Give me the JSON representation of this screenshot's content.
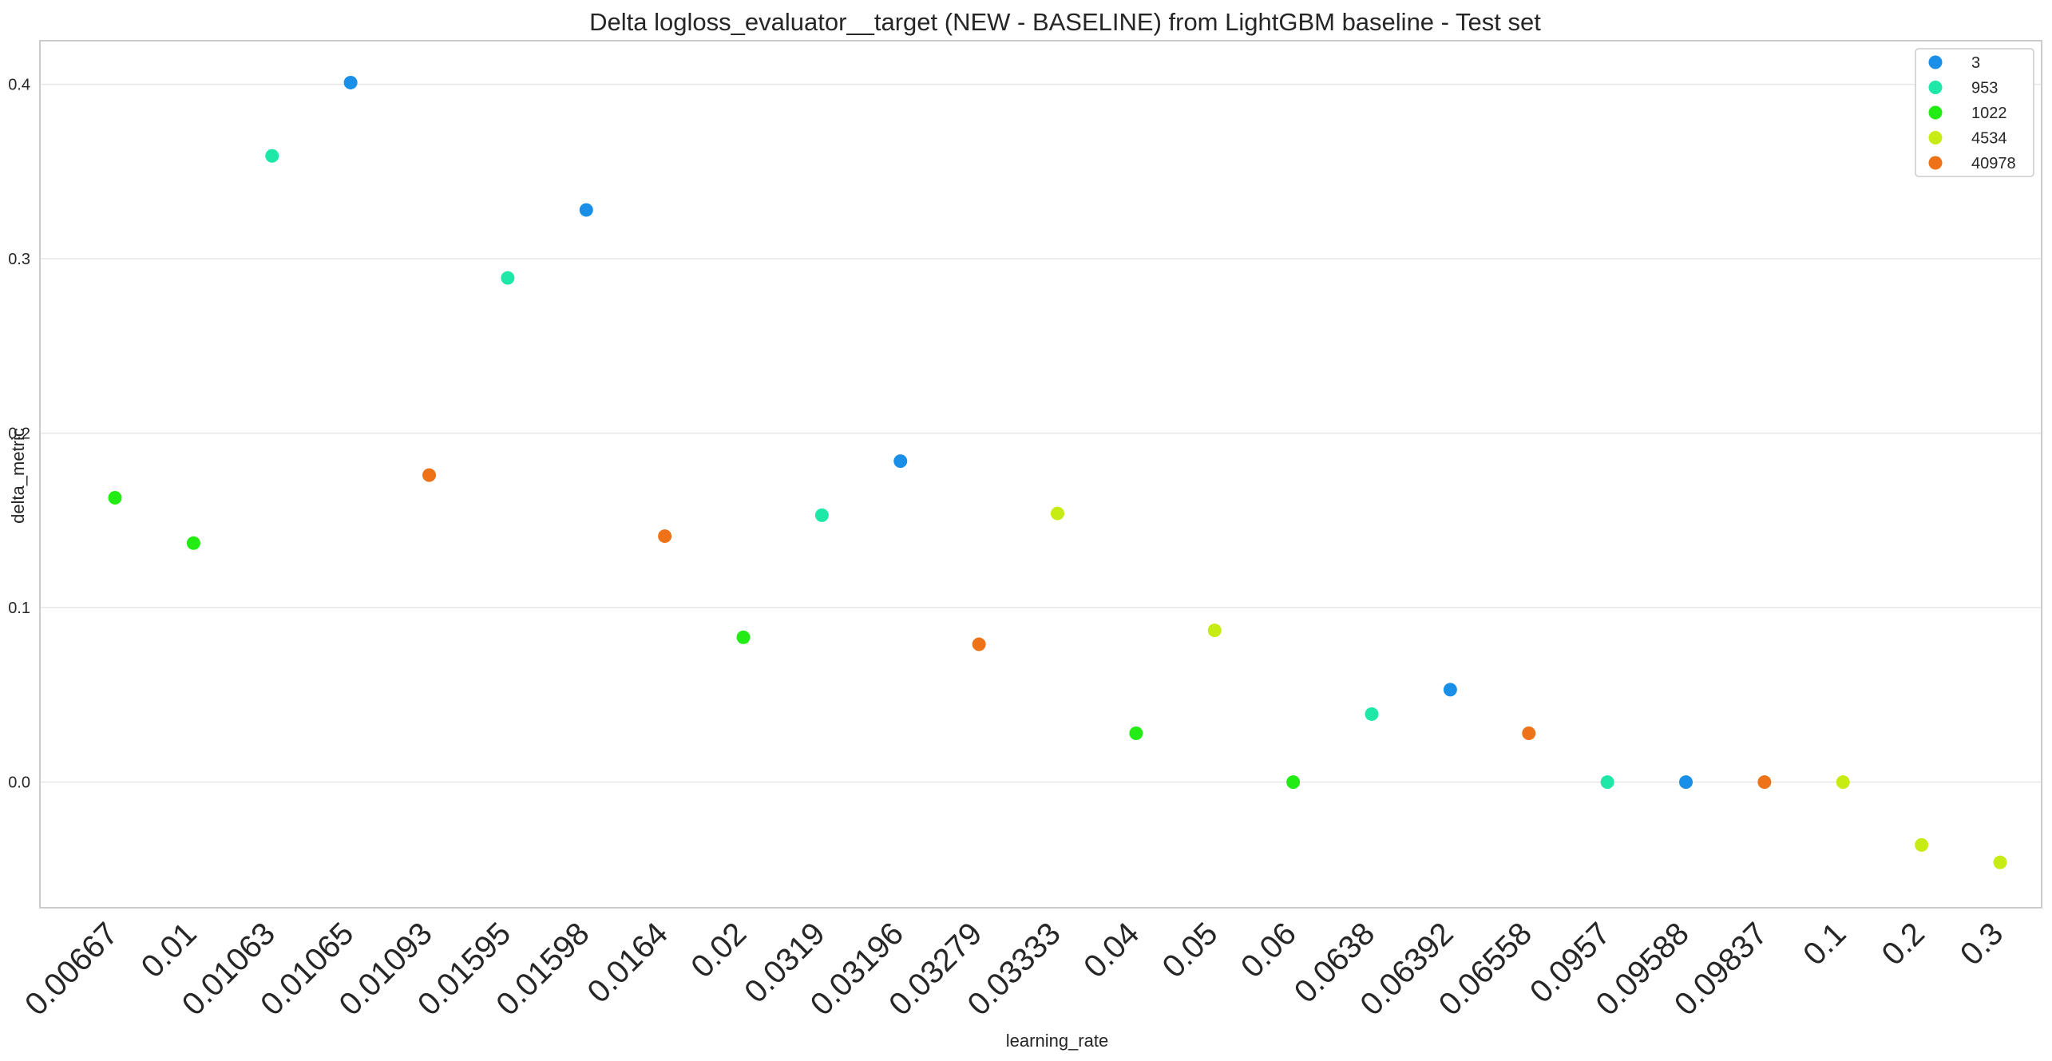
{
  "chart_data": {
    "type": "scatter",
    "title": "Delta logloss_evaluator__target (NEW - BASELINE) from LightGBM baseline - Test set",
    "xlabel": "learning_rate",
    "ylabel": "delta_metric",
    "x_scale": "categorical",
    "categories": [
      "0.00667",
      "0.01",
      "0.01063",
      "0.01065",
      "0.01093",
      "0.01595",
      "0.01598",
      "0.0164",
      "0.02",
      "0.0319",
      "0.03196",
      "0.03279",
      "0.03333",
      "0.04",
      "0.05",
      "0.06",
      "0.0638",
      "0.06392",
      "0.06558",
      "0.0957",
      "0.09588",
      "0.09837",
      "0.1",
      "0.2",
      "0.3"
    ],
    "ylim": [
      -0.072,
      0.425
    ],
    "yticks": [
      0.0,
      0.1,
      0.2,
      0.3,
      0.4
    ],
    "ytick_labels": [
      "0.0",
      "0.1",
      "0.2",
      "0.3",
      "0.4"
    ],
    "grid": true,
    "grid_axis": "y",
    "legend_position": "top-right",
    "series": [
      {
        "name": "3",
        "color": "#1a8fe8",
        "points": [
          {
            "x": "0.01065",
            "y": 0.401
          },
          {
            "x": "0.01598",
            "y": 0.328
          },
          {
            "x": "0.03196",
            "y": 0.184
          },
          {
            "x": "0.06392",
            "y": 0.053
          },
          {
            "x": "0.09588",
            "y": 0.0
          }
        ]
      },
      {
        "name": "953",
        "color": "#1de8a8",
        "points": [
          {
            "x": "0.01063",
            "y": 0.359
          },
          {
            "x": "0.01595",
            "y": 0.289
          },
          {
            "x": "0.0319",
            "y": 0.153
          },
          {
            "x": "0.0638",
            "y": 0.039
          },
          {
            "x": "0.0957",
            "y": 0.0
          }
        ]
      },
      {
        "name": "1022",
        "color": "#22ec14",
        "points": [
          {
            "x": "0.00667",
            "y": 0.163
          },
          {
            "x": "0.01",
            "y": 0.137
          },
          {
            "x": "0.02",
            "y": 0.083
          },
          {
            "x": "0.04",
            "y": 0.028
          },
          {
            "x": "0.06",
            "y": 0.0
          }
        ]
      },
      {
        "name": "4534",
        "color": "#c6ec14",
        "points": [
          {
            "x": "0.03333",
            "y": 0.154
          },
          {
            "x": "0.05",
            "y": 0.087
          },
          {
            "x": "0.1",
            "y": 0.0
          },
          {
            "x": "0.2",
            "y": -0.036
          },
          {
            "x": "0.3",
            "y": -0.046
          }
        ]
      },
      {
        "name": "40978",
        "color": "#ee7318",
        "points": [
          {
            "x": "0.01093",
            "y": 0.176
          },
          {
            "x": "0.0164",
            "y": 0.141
          },
          {
            "x": "0.03279",
            "y": 0.079
          },
          {
            "x": "0.06558",
            "y": 0.028
          },
          {
            "x": "0.09837",
            "y": 0.0
          }
        ]
      }
    ]
  }
}
